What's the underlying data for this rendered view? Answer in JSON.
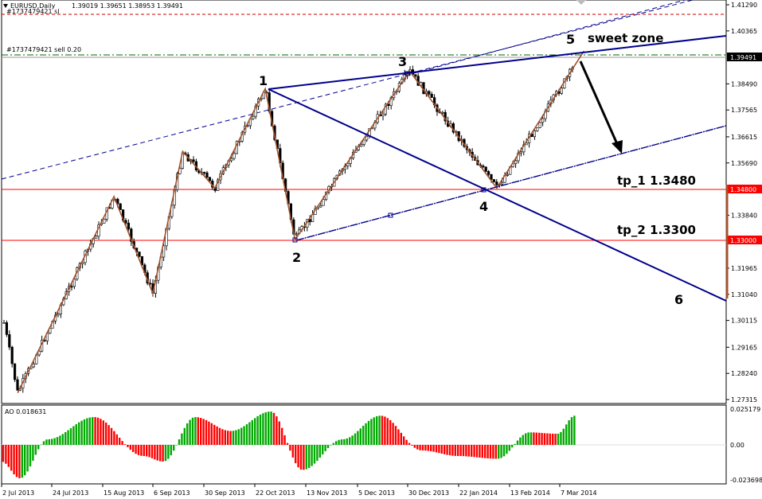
{
  "header": {
    "symbol": "EURUSD,Daily",
    "ohlc": "1.39019 1.39651 1.38953 1.39491",
    "order_tag_top": "#1737479421 sl",
    "order_tag": "#1737479421 sell 0.20"
  },
  "ao": {
    "label": "AO 0.018631",
    "ticks": [
      "0.025179",
      "0.00",
      "-0.023698"
    ]
  },
  "chart_data": {
    "type": "line",
    "title": "EURUSD,Daily",
    "price_axis_ticks": [
      "1.41290",
      "1.40365",
      "1.39491",
      "1.38490",
      "1.37565",
      "1.36615",
      "1.35690",
      "1.34800",
      "1.33840",
      "1.33000",
      "1.31965",
      "1.31040",
      "1.30115",
      "1.29165",
      "1.28240",
      "1.27315"
    ],
    "date_axis_ticks": [
      "2 Jul 2013",
      "24 Jul 2013",
      "15 Aug 2013",
      "6 Sep 2013",
      "30 Sep 2013",
      "22 Oct 2013",
      "13 Nov 2013",
      "5 Dec 2013",
      "30 Dec 2013",
      "22 Jan 2014",
      "13 Feb 2014",
      "7 Mar 2014"
    ],
    "current_price": "1.39491",
    "levels": [
      {
        "label": "tp_1 1.3480",
        "price": 1.348,
        "tag": "1.34800",
        "color": "#ff0000"
      },
      {
        "label": "tp_2 1.3300",
        "price": 1.33,
        "tag": "1.33000",
        "color": "#ff0000"
      }
    ],
    "wave_points": [
      {
        "label": "1",
        "date": "2013-10-25",
        "price": 1.3832
      },
      {
        "label": "2",
        "date": "2013-11-07",
        "price": 1.3297
      },
      {
        "label": "3",
        "date": "2013-12-27",
        "price": 1.3894
      },
      {
        "label": "4",
        "date": "2014-02-03",
        "price": 1.348
      },
      {
        "label": "5",
        "date": "2014-03-13",
        "price": 1.3965
      },
      {
        "label": "6",
        "date": "",
        "price": null
      }
    ],
    "zigzag": [
      {
        "date": "2013-07-09",
        "price": 1.2755
      },
      {
        "date": "2013-08-20",
        "price": 1.345
      },
      {
        "date": "2013-09-06",
        "price": 1.3107
      },
      {
        "date": "2013-09-19",
        "price": 1.361
      },
      {
        "date": "2013-10-03",
        "price": 1.348
      },
      {
        "date": "2013-10-25",
        "price": 1.3832
      },
      {
        "date": "2013-11-07",
        "price": 1.3297
      },
      {
        "date": "2013-12-27",
        "price": 1.3894
      },
      {
        "date": "2014-02-03",
        "price": 1.348
      },
      {
        "date": "2014-03-13",
        "price": 1.3965
      }
    ],
    "annotations": [
      "sweet zone",
      "tp_1 1.3480",
      "tp_2 1.3300"
    ],
    "colors": {
      "bull": "#009900",
      "bear": "#ff0000",
      "wave_line": "#a0522d",
      "trend": "#00008b",
      "level": "#ff0000",
      "ao_up": "#00aa00",
      "ao_down": "#ff0000"
    }
  }
}
